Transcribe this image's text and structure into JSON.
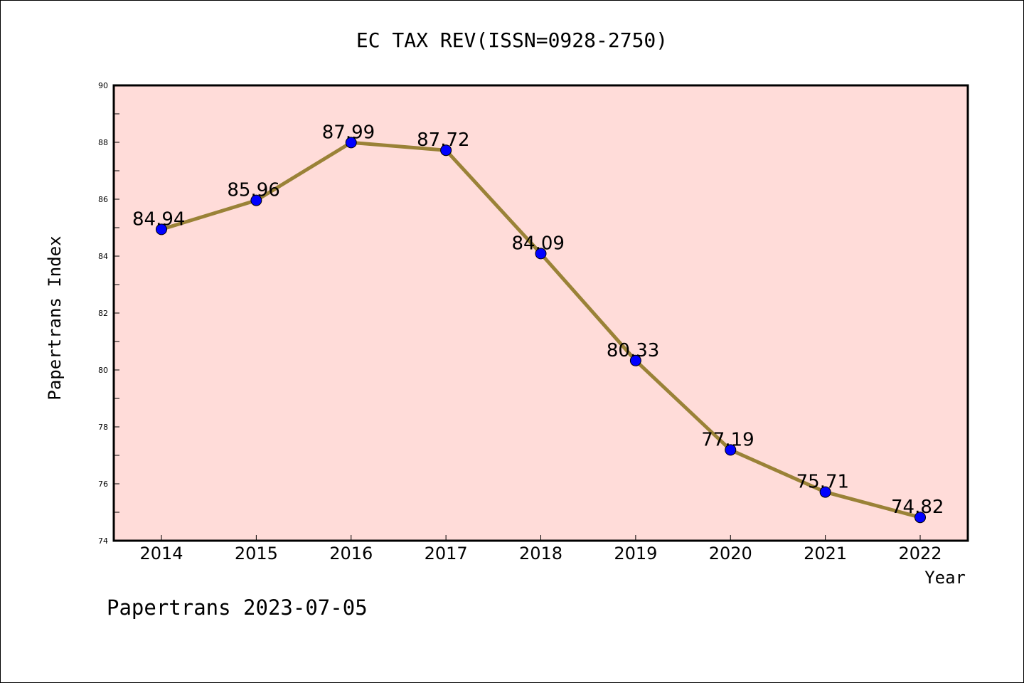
{
  "chart_data": {
    "type": "line",
    "title": "EC TAX REV(ISSN=0928-2750)",
    "xlabel": "Year",
    "ylabel": "Papertrans Index",
    "x": [
      "2014",
      "2015",
      "2016",
      "2017",
      "2018",
      "2019",
      "2020",
      "2021",
      "2022"
    ],
    "series": [
      {
        "values": [
          84.94,
          85.96,
          87.99,
          87.72,
          84.09,
          80.33,
          77.19,
          75.71,
          74.82
        ],
        "labels": [
          "84.94",
          "85.96",
          "87.99",
          "87.72",
          "84.09",
          "80.33",
          "77.19",
          "75.71",
          "74.82"
        ]
      }
    ],
    "ylim": [
      74,
      90
    ],
    "yticks": [
      "74",
      "76",
      "78",
      "80",
      "82",
      "84",
      "86",
      "88",
      "90"
    ],
    "grid": false,
    "colors": {
      "plot_background": "#ffdcd9",
      "line": "#9a8237",
      "marker": "#0000ff"
    },
    "footer": "Papertrans 2023-07-05"
  }
}
